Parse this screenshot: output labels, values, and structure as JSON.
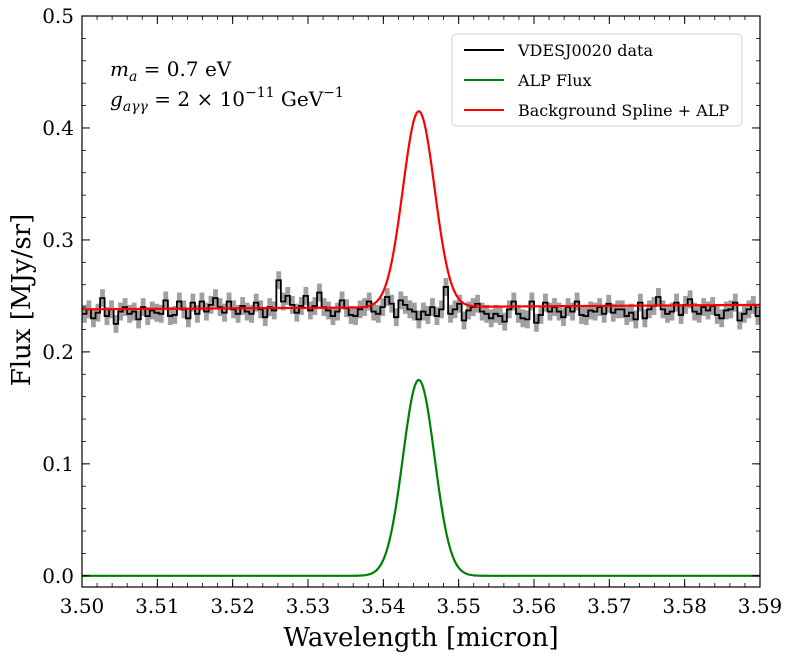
{
  "chart_data": {
    "type": "line",
    "xlabel": "Wavelength [micron]",
    "ylabel": "Flux [MJy/sr]",
    "xlim": [
      3.5,
      3.59
    ],
    "ylim": [
      -0.01,
      0.5
    ],
    "xticks": [
      "3.50",
      "3.51",
      "3.52",
      "3.53",
      "3.54",
      "3.55",
      "3.56",
      "3.57",
      "3.58",
      "3.59"
    ],
    "yticks": [
      "0.0",
      "0.1",
      "0.2",
      "0.3",
      "0.4",
      "0.5"
    ],
    "legend_position": "top-right",
    "annotation": {
      "line1": {
        "sym": "m",
        "sub": "a",
        "rest": " = 0.7 eV"
      },
      "line2": {
        "sym": "g",
        "sub": "aγγ",
        "pre": " = 2 × 10",
        "exp": "−11",
        "unit": " GeV",
        "unit_exp": "−1"
      }
    },
    "series": [
      {
        "name": "VDESJ0020 data",
        "style": "step",
        "color": "#000000",
        "error_color": "#a0a0a0",
        "error": 0.008,
        "x_start": 3.5,
        "x_step": 0.0006,
        "y": [
          0.234,
          0.238,
          0.23,
          0.235,
          0.248,
          0.232,
          0.238,
          0.225,
          0.236,
          0.24,
          0.234,
          0.236,
          0.229,
          0.24,
          0.232,
          0.237,
          0.235,
          0.234,
          0.246,
          0.232,
          0.233,
          0.245,
          0.238,
          0.23,
          0.244,
          0.234,
          0.245,
          0.236,
          0.242,
          0.248,
          0.24,
          0.235,
          0.245,
          0.238,
          0.234,
          0.241,
          0.236,
          0.234,
          0.244,
          0.238,
          0.231,
          0.24,
          0.237,
          0.264,
          0.245,
          0.25,
          0.242,
          0.235,
          0.241,
          0.25,
          0.237,
          0.241,
          0.253,
          0.24,
          0.237,
          0.232,
          0.236,
          0.246,
          0.239,
          0.233,
          0.232,
          0.238,
          0.24,
          0.245,
          0.236,
          0.234,
          0.24,
          0.249,
          0.243,
          0.231,
          0.246,
          0.242,
          0.238,
          0.236,
          0.229,
          0.236,
          0.233,
          0.24,
          0.232,
          0.238,
          0.258,
          0.234,
          0.238,
          0.243,
          0.228,
          0.237,
          0.24,
          0.243,
          0.236,
          0.234,
          0.23,
          0.234,
          0.232,
          0.227,
          0.238,
          0.245,
          0.234,
          0.23,
          0.229,
          0.245,
          0.226,
          0.233,
          0.244,
          0.236,
          0.24,
          0.236,
          0.231,
          0.24,
          0.236,
          0.245,
          0.233,
          0.232,
          0.237,
          0.236,
          0.24,
          0.234,
          0.243,
          0.235,
          0.238,
          0.238,
          0.232,
          0.235,
          0.229,
          0.244,
          0.23,
          0.238,
          0.241,
          0.249,
          0.238,
          0.234,
          0.236,
          0.244,
          0.233,
          0.242,
          0.247,
          0.236,
          0.234,
          0.24,
          0.237,
          0.241,
          0.233,
          0.23,
          0.237,
          0.238,
          0.244,
          0.228,
          0.234,
          0.238,
          0.242,
          0.232,
          0.237,
          0.236,
          0.243,
          0.238,
          0.241,
          0.233,
          0.239,
          0.24
        ]
      },
      {
        "name": "ALP Flux",
        "style": "line",
        "color": "#008000",
        "baseline": 0.0,
        "peak_center": 3.5447,
        "peak_amplitude": 0.175,
        "peak_sigma": 0.0021
      },
      {
        "name": "Background Spline + ALP",
        "style": "line",
        "color": "#ff0000",
        "baseline_start": 0.238,
        "baseline_end": 0.242,
        "peak_center": 3.5447,
        "peak_amplitude": 0.175,
        "peak_sigma": 0.0021
      }
    ]
  }
}
